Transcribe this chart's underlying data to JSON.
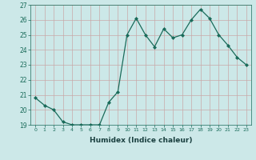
{
  "x": [
    0,
    1,
    2,
    3,
    4,
    5,
    6,
    7,
    8,
    9,
    10,
    11,
    12,
    13,
    14,
    15,
    16,
    17,
    18,
    19,
    20,
    21,
    22,
    23
  ],
  "y": [
    20.8,
    20.3,
    20.0,
    19.2,
    19.0,
    19.0,
    19.0,
    19.0,
    20.5,
    21.2,
    25.0,
    26.1,
    25.0,
    24.2,
    25.4,
    24.8,
    25.0,
    26.0,
    26.7,
    26.1,
    25.0,
    24.3,
    23.5,
    23.0
  ],
  "xlabel": "Humidex (Indice chaleur)",
  "ylim": [
    19,
    27
  ],
  "xlim": [
    -0.5,
    23.5
  ],
  "yticks": [
    19,
    20,
    21,
    22,
    23,
    24,
    25,
    26,
    27
  ],
  "xticks": [
    0,
    1,
    2,
    3,
    4,
    5,
    6,
    7,
    8,
    9,
    10,
    11,
    12,
    13,
    14,
    15,
    16,
    17,
    18,
    19,
    20,
    21,
    22,
    23
  ],
  "line_color": "#1a6b5a",
  "marker_color": "#1a6b5a",
  "bg_color": "#cce8e8",
  "grid_color": "#b0d0d0",
  "font_color": "#1a6b5a",
  "xlabel_color": "#1a4040"
}
